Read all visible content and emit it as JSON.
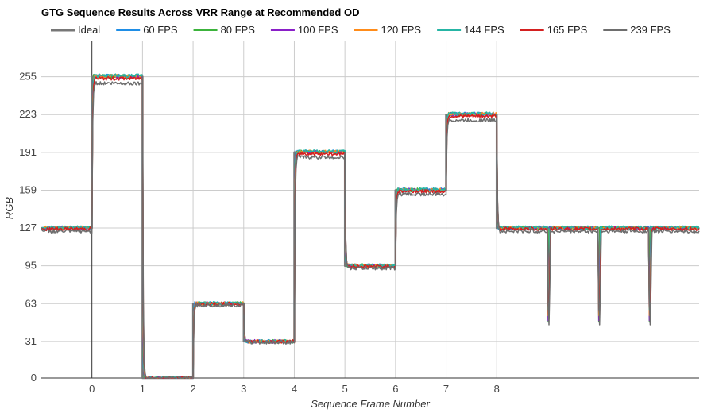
{
  "chart_data": {
    "type": "line",
    "title": "GTG Sequence Results Across VRR Range at Recommended OD",
    "xlabel": "Sequence Frame Number",
    "ylabel": "RGB",
    "grid": true,
    "legend_position": "top",
    "x_ticks": [
      0,
      1,
      2,
      3,
      4,
      5,
      6,
      7,
      8
    ],
    "x_range": [
      -1,
      12
    ],
    "y_ticks": [
      0,
      31,
      63,
      95,
      127,
      159,
      191,
      223,
      255
    ],
    "y_range": [
      0,
      285
    ],
    "segment_levels": [
      {
        "start": -1,
        "end": 0,
        "value": 127
      },
      {
        "start": 0,
        "end": 1,
        "value": 255
      },
      {
        "start": 1,
        "end": 2,
        "value": 0
      },
      {
        "start": 2,
        "end": 3,
        "value": 63
      },
      {
        "start": 3,
        "end": 4,
        "value": 31
      },
      {
        "start": 4,
        "end": 5,
        "value": 191
      },
      {
        "start": 5,
        "end": 6,
        "value": 95
      },
      {
        "start": 6,
        "end": 7,
        "value": 159
      },
      {
        "start": 7,
        "end": 8,
        "value": 223
      },
      {
        "start": 8,
        "end": 9,
        "value": 127
      },
      {
        "start": 9,
        "end": 10,
        "value": 127
      },
      {
        "start": 10,
        "end": 11,
        "value": 127
      },
      {
        "start": 11,
        "end": 12,
        "value": 127
      }
    ],
    "series": [
      {
        "name": "Ideal",
        "color": "#777777",
        "ideal": true
      },
      {
        "name": "60 FPS",
        "color": "#1f8ee6",
        "offset": 0.6
      },
      {
        "name": "80 FPS",
        "color": "#3cb33c",
        "offset": 0.4
      },
      {
        "name": "100 FPS",
        "color": "#8a1fc8",
        "offset": 0.2
      },
      {
        "name": "120 FPS",
        "color": "#ff8c1a",
        "offset": 0.5
      },
      {
        "name": "144 FPS",
        "color": "#26b5a5",
        "offset": 0.8
      },
      {
        "name": "165 FPS",
        "color": "#d42020",
        "offset": -1.5
      },
      {
        "name": "239 FPS",
        "color": "#6e6e6e",
        "offset": -5.5
      }
    ]
  }
}
